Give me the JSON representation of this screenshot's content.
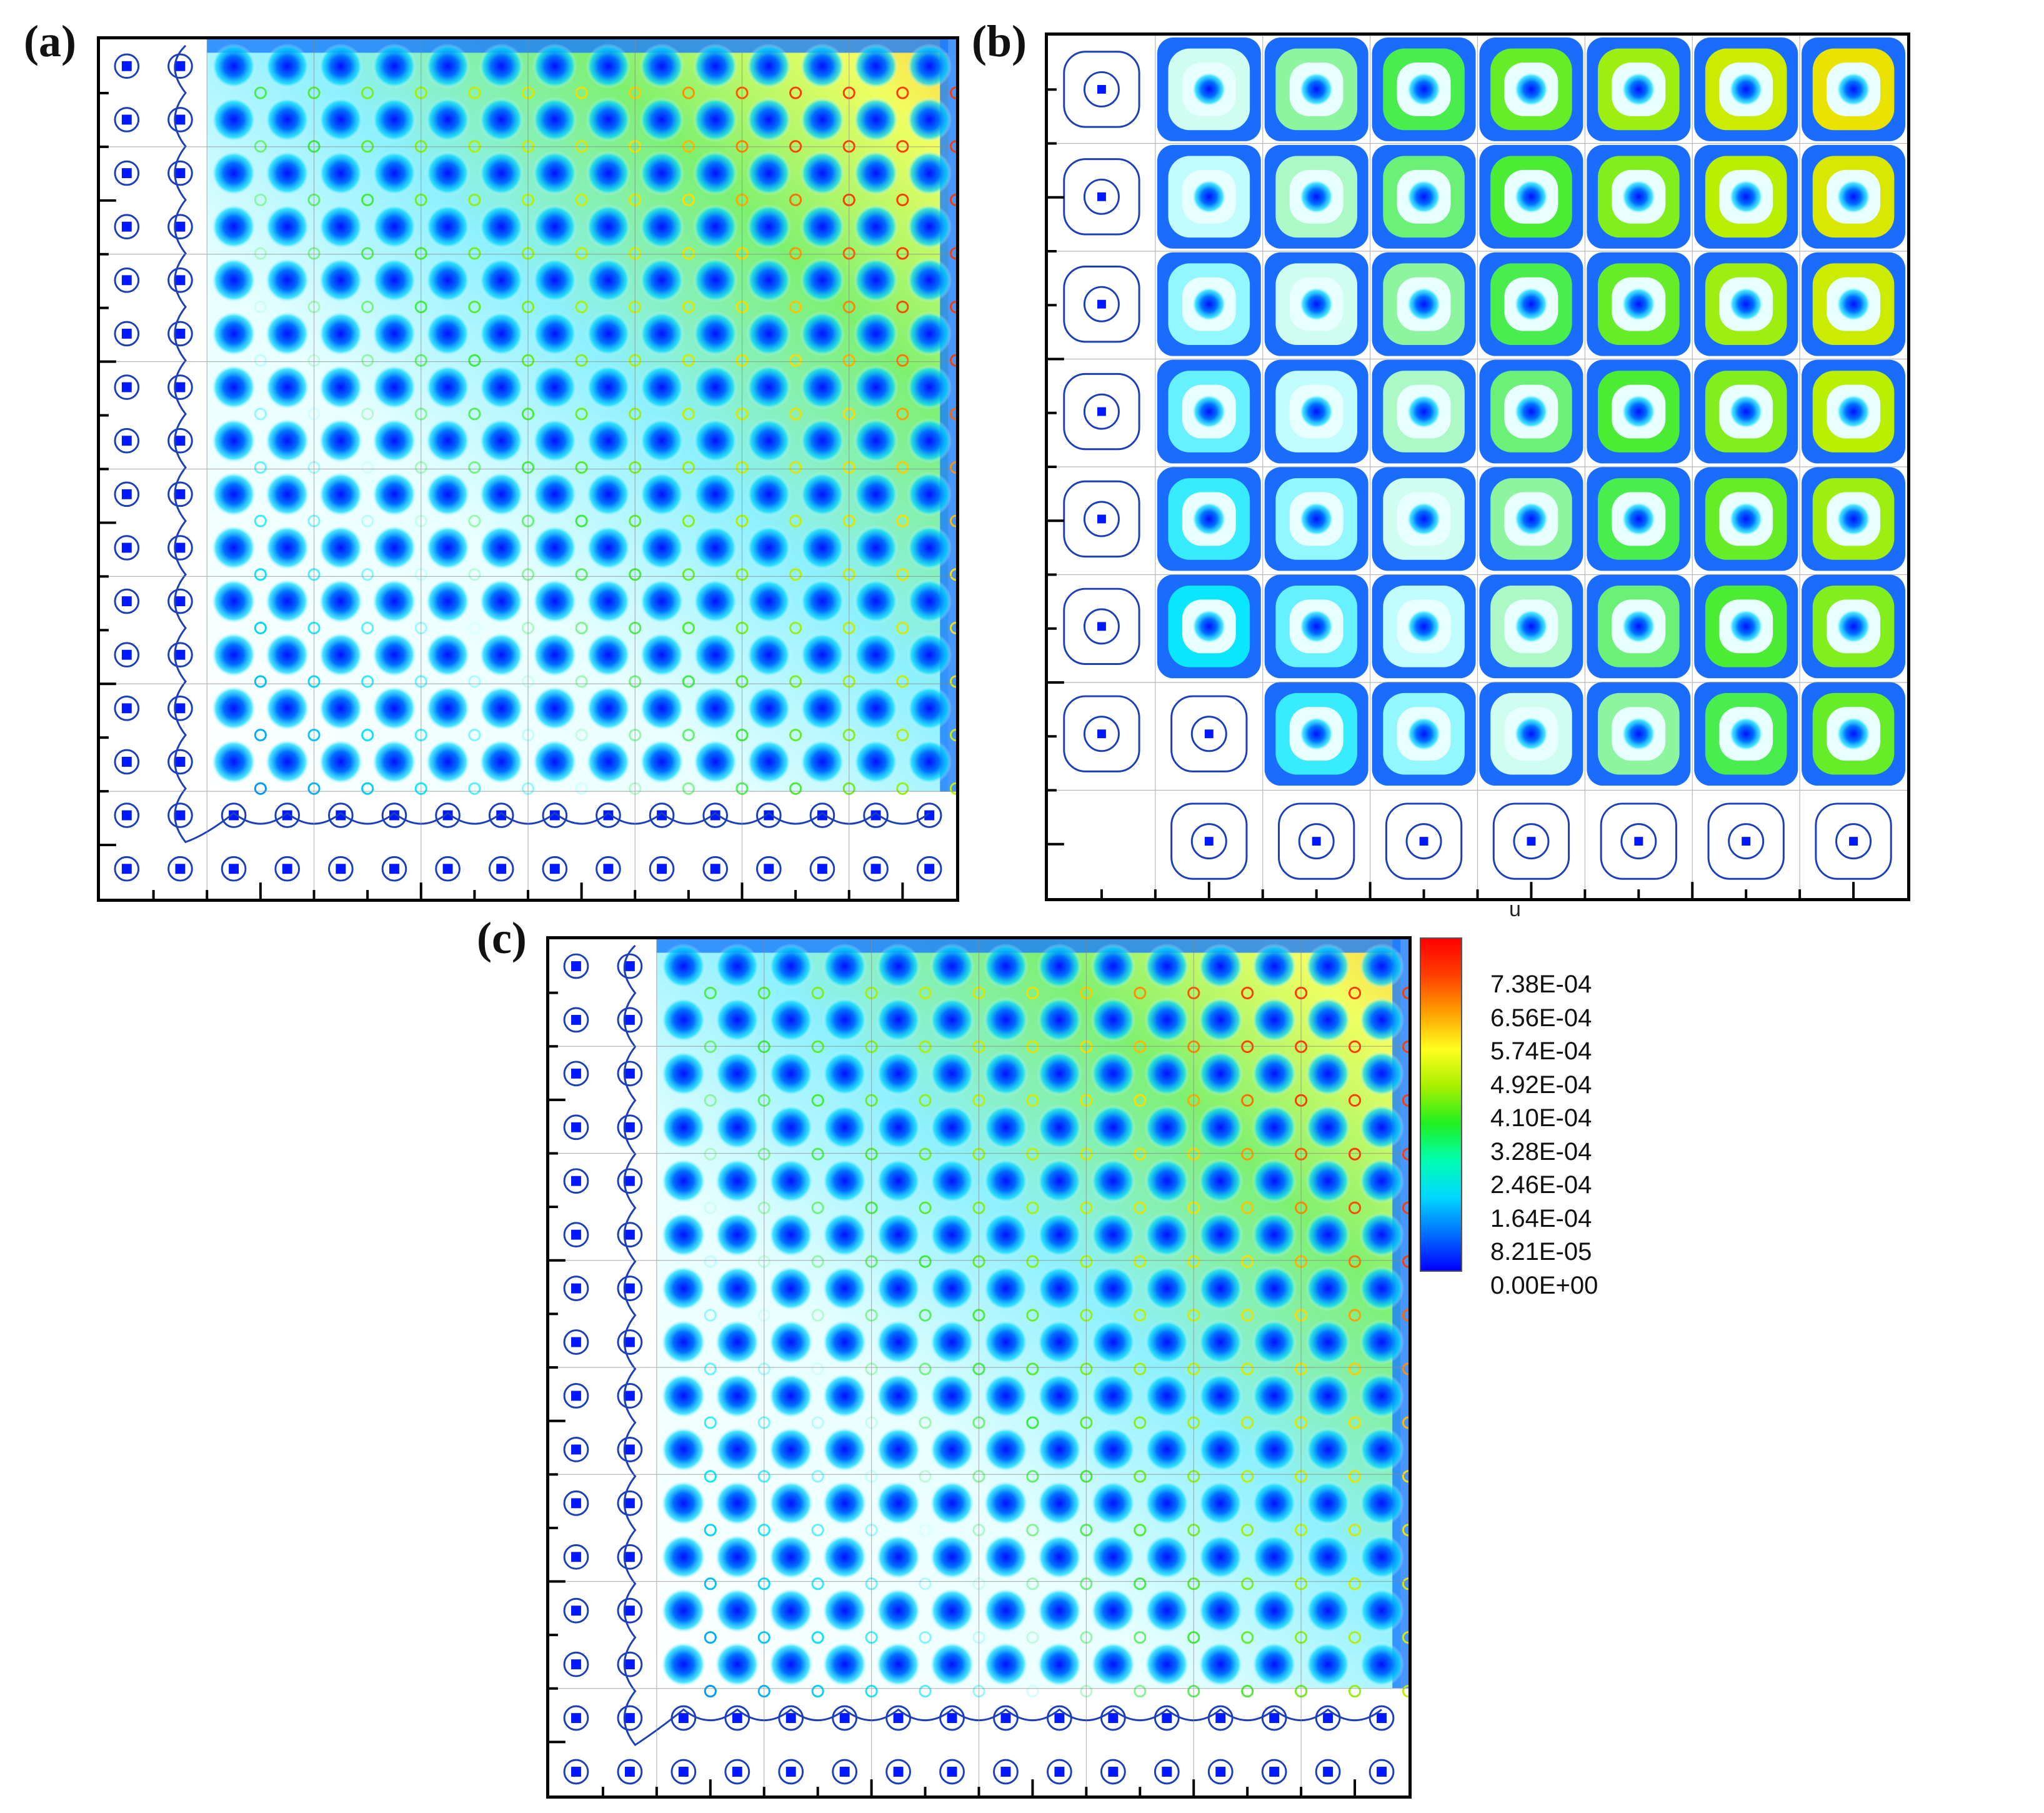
{
  "panels": [
    {
      "label": "(a)"
    },
    {
      "label": "(b)"
    },
    {
      "label": "(c)"
    }
  ],
  "axis_label": "u",
  "legend": {
    "variable": "u",
    "levels": [
      "7.38E-04",
      "6.56E-04",
      "5.74E-04",
      "4.92E-04",
      "4.10E-04",
      "3.28E-04",
      "2.46E-04",
      "1.64E-04",
      "8.21E-05",
      "0.00E+00"
    ],
    "colors": [
      "#0000ff",
      "#0070ff",
      "#00d8ff",
      "#00ffb0",
      "#20f020",
      "#a8f000",
      "#ffff20",
      "#ffa000",
      "#ff4000",
      "#ff0000"
    ]
  }
}
